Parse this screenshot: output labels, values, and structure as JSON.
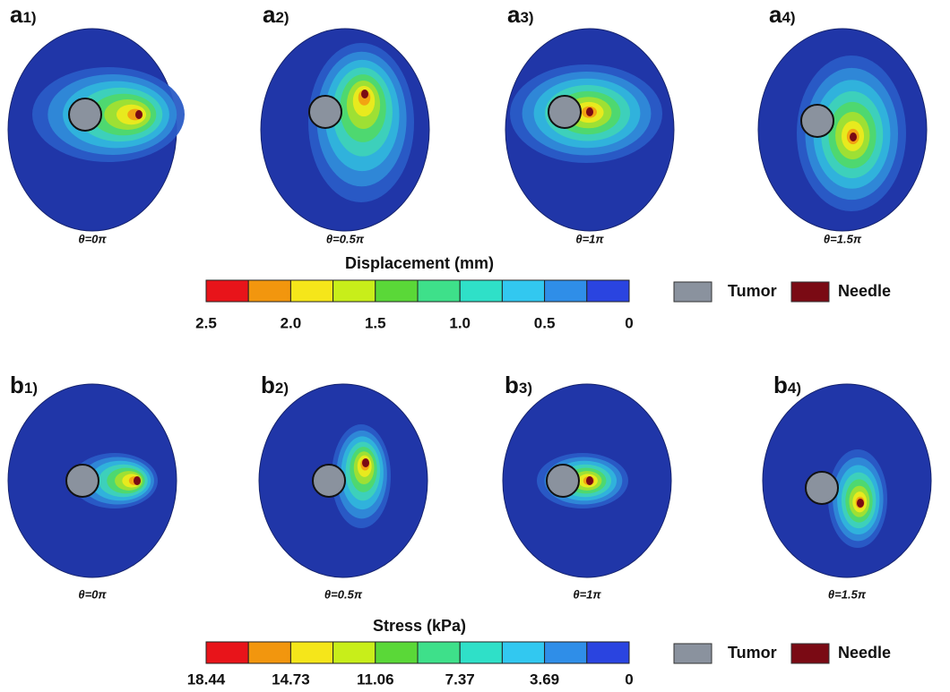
{
  "displacement": {
    "panels": [
      {
        "label": "a",
        "index": "1)",
        "caption": "θ=0π"
      },
      {
        "label": "a",
        "index": "2)",
        "caption": "θ=0.5π"
      },
      {
        "label": "a",
        "index": "3)",
        "caption": "θ=1π"
      },
      {
        "label": "a",
        "index": "4)",
        "caption": "θ=1.5π"
      }
    ],
    "colorbar": {
      "title": "Displacement (mm)",
      "ticks": [
        "2.5",
        "2.0",
        "1.5",
        "1.0",
        "0.5",
        "0"
      ]
    },
    "legend": [
      "Tumor",
      "Needle"
    ]
  },
  "stress": {
    "panels": [
      {
        "label": "b",
        "index": "1)",
        "caption": "θ=0π"
      },
      {
        "label": "b",
        "index": "2)",
        "caption": "θ=0.5π"
      },
      {
        "label": "b",
        "index": "3)",
        "caption": "θ=1π"
      },
      {
        "label": "b",
        "index": "4)",
        "caption": "θ=1.5π"
      }
    ],
    "colorbar": {
      "title": "Stress (kPa)",
      "ticks": [
        "18.44",
        "14.73",
        "11.06",
        "7.37",
        "3.69",
        "0"
      ]
    },
    "legend": [
      "Tumor",
      "Needle"
    ]
  }
}
